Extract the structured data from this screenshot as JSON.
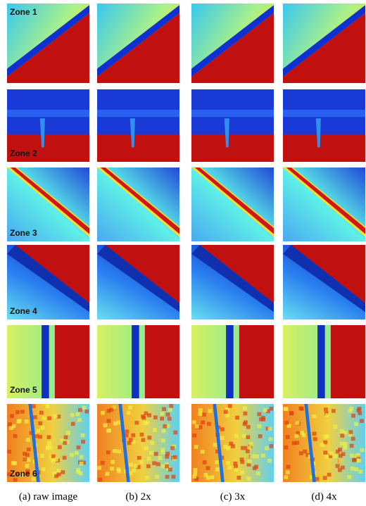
{
  "zones": [
    "Zone 1",
    "Zone 2",
    "Zone 3",
    "Zone 4",
    "Zone 5",
    "Zone 6"
  ],
  "columns": [
    "(a) raw image",
    "(b) 2x",
    "(c) 3x",
    "(d) 4x"
  ]
}
